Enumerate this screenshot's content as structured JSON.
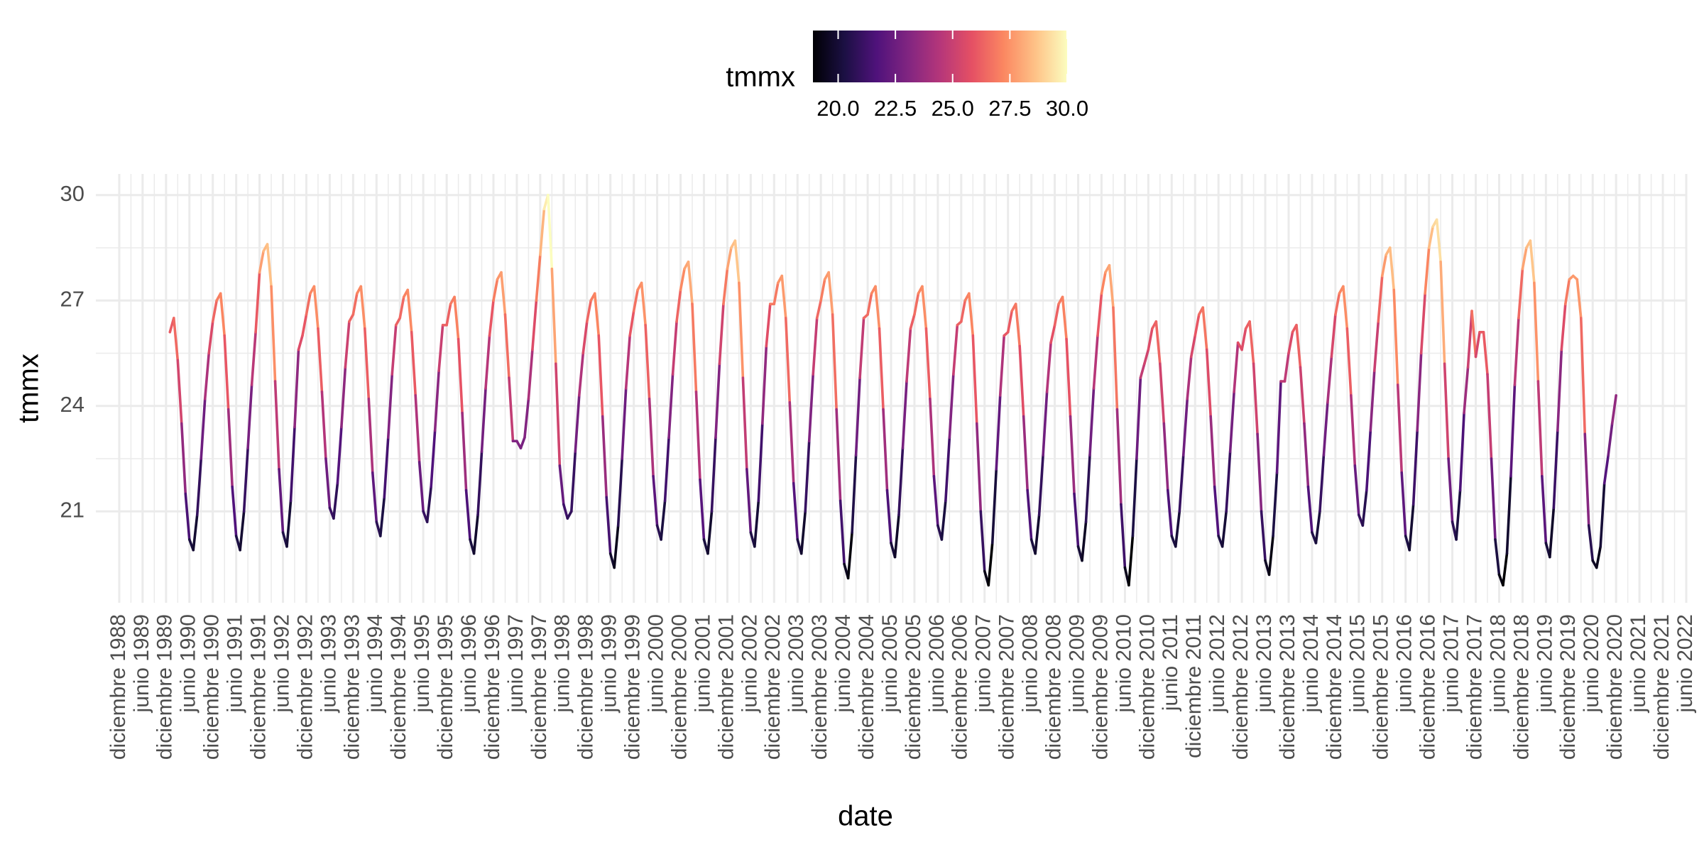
{
  "chart_data": {
    "type": "line",
    "x_label": "date",
    "y_label": "tmmx",
    "x": [
      "1990-01",
      "1990-02",
      "1990-03",
      "1990-04",
      "1990-05",
      "1990-06",
      "1990-07",
      "1990-08",
      "1990-09",
      "1990-10",
      "1990-11",
      "1990-12",
      "1991-01",
      "1991-02",
      "1991-03",
      "1991-04",
      "1991-05",
      "1991-06",
      "1991-07",
      "1991-08",
      "1991-09",
      "1991-10",
      "1991-11",
      "1991-12",
      "1992-01",
      "1992-02",
      "1992-03",
      "1992-04",
      "1992-05",
      "1992-06",
      "1992-07",
      "1992-08",
      "1992-09",
      "1992-10",
      "1992-11",
      "1992-12",
      "1993-01",
      "1993-02",
      "1993-03",
      "1993-04",
      "1993-05",
      "1993-06",
      "1993-07",
      "1993-08",
      "1993-09",
      "1993-10",
      "1993-11",
      "1993-12",
      "1994-01",
      "1994-02",
      "1994-03",
      "1994-04",
      "1994-05",
      "1994-06",
      "1994-07",
      "1994-08",
      "1994-09",
      "1994-10",
      "1994-11",
      "1994-12",
      "1995-01",
      "1995-02",
      "1995-03",
      "1995-04",
      "1995-05",
      "1995-06",
      "1995-07",
      "1995-08",
      "1995-09",
      "1995-10",
      "1995-11",
      "1995-12",
      "1996-01",
      "1996-02",
      "1996-03",
      "1996-04",
      "1996-05",
      "1996-06",
      "1996-07",
      "1996-08",
      "1996-09",
      "1996-10",
      "1996-11",
      "1996-12",
      "1997-01",
      "1997-02",
      "1997-03",
      "1997-04",
      "1997-05",
      "1997-06",
      "1997-07",
      "1997-08",
      "1997-09",
      "1997-10",
      "1997-11",
      "1997-12",
      "1998-01",
      "1998-02",
      "1998-03",
      "1998-04",
      "1998-05",
      "1998-06",
      "1998-07",
      "1998-08",
      "1998-09",
      "1998-10",
      "1998-11",
      "1998-12",
      "1999-01",
      "1999-02",
      "1999-03",
      "1999-04",
      "1999-05",
      "1999-06",
      "1999-07",
      "1999-08",
      "1999-09",
      "1999-10",
      "1999-11",
      "1999-12",
      "2000-01",
      "2000-02",
      "2000-03",
      "2000-04",
      "2000-05",
      "2000-06",
      "2000-07",
      "2000-08",
      "2000-09",
      "2000-10",
      "2000-11",
      "2000-12",
      "2001-01",
      "2001-02",
      "2001-03",
      "2001-04",
      "2001-05",
      "2001-06",
      "2001-07",
      "2001-08",
      "2001-09",
      "2001-10",
      "2001-11",
      "2001-12",
      "2002-01",
      "2002-02",
      "2002-03",
      "2002-04",
      "2002-05",
      "2002-06",
      "2002-07",
      "2002-08",
      "2002-09",
      "2002-10",
      "2002-11",
      "2002-12",
      "2003-01",
      "2003-02",
      "2003-03",
      "2003-04",
      "2003-05",
      "2003-06",
      "2003-07",
      "2003-08",
      "2003-09",
      "2003-10",
      "2003-11",
      "2003-12",
      "2004-01",
      "2004-02",
      "2004-03",
      "2004-04",
      "2004-05",
      "2004-06",
      "2004-07",
      "2004-08",
      "2004-09",
      "2004-10",
      "2004-11",
      "2004-12",
      "2005-01",
      "2005-02",
      "2005-03",
      "2005-04",
      "2005-05",
      "2005-06",
      "2005-07",
      "2005-08",
      "2005-09",
      "2005-10",
      "2005-11",
      "2005-12",
      "2006-01",
      "2006-02",
      "2006-03",
      "2006-04",
      "2006-05",
      "2006-06",
      "2006-07",
      "2006-08",
      "2006-09",
      "2006-10",
      "2006-11",
      "2006-12",
      "2007-01",
      "2007-02",
      "2007-03",
      "2007-04",
      "2007-05",
      "2007-06",
      "2007-07",
      "2007-08",
      "2007-09",
      "2007-10",
      "2007-11",
      "2007-12",
      "2008-01",
      "2008-02",
      "2008-03",
      "2008-04",
      "2008-05",
      "2008-06",
      "2008-07",
      "2008-08",
      "2008-09",
      "2008-10",
      "2008-11",
      "2008-12",
      "2009-01",
      "2009-02",
      "2009-03",
      "2009-04",
      "2009-05",
      "2009-06",
      "2009-07",
      "2009-08",
      "2009-09",
      "2009-10",
      "2009-11",
      "2009-12",
      "2010-01",
      "2010-02",
      "2010-03",
      "2010-04",
      "2010-05",
      "2010-06",
      "2010-07",
      "2010-08",
      "2010-09",
      "2010-10",
      "2010-11",
      "2010-12",
      "2011-01",
      "2011-02",
      "2011-03",
      "2011-04",
      "2011-05",
      "2011-06",
      "2011-07",
      "2011-08",
      "2011-09",
      "2011-10",
      "2011-11",
      "2011-12",
      "2012-01",
      "2012-02",
      "2012-03",
      "2012-04",
      "2012-05",
      "2012-06",
      "2012-07",
      "2012-08",
      "2012-09",
      "2012-10",
      "2012-11",
      "2012-12",
      "2013-01",
      "2013-02",
      "2013-03",
      "2013-04",
      "2013-05",
      "2013-06",
      "2013-07",
      "2013-08",
      "2013-09",
      "2013-10",
      "2013-11",
      "2013-12",
      "2014-01",
      "2014-02",
      "2014-03",
      "2014-04",
      "2014-05",
      "2014-06",
      "2014-07",
      "2014-08",
      "2014-09",
      "2014-10",
      "2014-11",
      "2014-12",
      "2015-01",
      "2015-02",
      "2015-03",
      "2015-04",
      "2015-05",
      "2015-06",
      "2015-07",
      "2015-08",
      "2015-09",
      "2015-10",
      "2015-11",
      "2015-12",
      "2016-01",
      "2016-02",
      "2016-03",
      "2016-04",
      "2016-05",
      "2016-06",
      "2016-07",
      "2016-08",
      "2016-09",
      "2016-10",
      "2016-11",
      "2016-12",
      "2017-01",
      "2017-02",
      "2017-03",
      "2017-04",
      "2017-05",
      "2017-06",
      "2017-07",
      "2017-08",
      "2017-09",
      "2017-10",
      "2017-11",
      "2017-12",
      "2018-01",
      "2018-02",
      "2018-03",
      "2018-04",
      "2018-05",
      "2018-06",
      "2018-07",
      "2018-08",
      "2018-09",
      "2018-10",
      "2018-11",
      "2018-12",
      "2019-01",
      "2019-02",
      "2019-03",
      "2019-04",
      "2019-05",
      "2019-06",
      "2019-07",
      "2019-08",
      "2019-09",
      "2019-10",
      "2019-11",
      "2019-12",
      "2020-01",
      "2020-02",
      "2020-03",
      "2020-04",
      "2020-05",
      "2020-06",
      "2020-07",
      "2020-08",
      "2020-09",
      "2020-10",
      "2020-11",
      "2020-12"
    ],
    "values": [
      26.1,
      26.5,
      25.3,
      23.5,
      21.5,
      20.2,
      19.9,
      20.9,
      22.5,
      24.2,
      25.5,
      26.4,
      27.0,
      27.2,
      26.0,
      23.9,
      21.7,
      20.3,
      19.9,
      21.0,
      22.8,
      24.6,
      26.1,
      27.8,
      28.4,
      28.6,
      27.4,
      24.7,
      22.2,
      20.4,
      20.0,
      21.3,
      23.4,
      25.6,
      26.0,
      26.6,
      27.2,
      27.4,
      26.2,
      24.4,
      22.5,
      21.1,
      20.8,
      21.8,
      23.4,
      25.1,
      26.4,
      26.6,
      27.2,
      27.4,
      26.2,
      24.2,
      22.1,
      20.7,
      20.3,
      21.4,
      23.1,
      24.9,
      26.3,
      26.5,
      27.1,
      27.3,
      26.1,
      24.3,
      22.4,
      21.0,
      20.7,
      21.7,
      23.3,
      25.0,
      26.3,
      26.3,
      26.9,
      27.1,
      25.9,
      23.8,
      21.6,
      20.2,
      19.8,
      20.9,
      22.7,
      24.5,
      26.0,
      27.0,
      27.6,
      27.8,
      26.6,
      24.8,
      23.0,
      23.0,
      22.8,
      23.1,
      24.2,
      25.6,
      27.0,
      28.3,
      29.6,
      30.0,
      27.9,
      25.2,
      22.3,
      21.2,
      20.8,
      21.0,
      22.7,
      24.3,
      25.5,
      26.4,
      27.0,
      27.2,
      26.0,
      23.7,
      21.4,
      19.8,
      19.4,
      20.6,
      22.5,
      24.5,
      26.0,
      26.7,
      27.3,
      27.5,
      26.3,
      24.2,
      22.0,
      20.6,
      20.2,
      21.3,
      23.1,
      24.9,
      26.4,
      27.3,
      27.9,
      28.1,
      26.9,
      24.4,
      21.9,
      20.2,
      19.8,
      21.0,
      23.1,
      25.2,
      26.9,
      27.9,
      28.5,
      28.7,
      27.5,
      24.8,
      22.2,
      20.4,
      20.0,
      21.3,
      23.5,
      25.7,
      26.9,
      26.9,
      27.5,
      27.7,
      26.5,
      24.1,
      21.8,
      20.2,
      19.8,
      21.0,
      23.0,
      24.9,
      26.5,
      27.0,
      27.6,
      27.8,
      26.6,
      23.9,
      21.3,
      19.5,
      19.1,
      20.4,
      22.6,
      24.8,
      26.5,
      26.6,
      27.2,
      27.4,
      26.2,
      23.9,
      21.6,
      20.1,
      19.7,
      20.9,
      22.8,
      24.7,
      26.2,
      26.6,
      27.2,
      27.4,
      26.2,
      24.2,
      22.0,
      20.6,
      20.2,
      21.3,
      23.1,
      24.9,
      26.3,
      26.4,
      27.0,
      27.2,
      26.0,
      23.5,
      21.0,
      19.3,
      18.9,
      20.1,
      22.2,
      24.3,
      26.0,
      26.1,
      26.7,
      26.9,
      25.7,
      23.7,
      21.6,
      20.2,
      19.8,
      20.9,
      22.6,
      24.4,
      25.8,
      26.3,
      26.9,
      27.1,
      25.9,
      23.7,
      21.5,
      20.0,
      19.6,
      20.7,
      22.6,
      24.5,
      26.0,
      27.2,
      27.8,
      28.0,
      26.8,
      23.9,
      21.2,
      19.4,
      18.9,
      20.3,
      22.5,
      24.8,
      25.2,
      25.6,
      26.2,
      26.4,
      25.2,
      23.5,
      21.6,
      20.3,
      20.0,
      21.0,
      22.6,
      24.2,
      25.4,
      26.0,
      26.6,
      26.8,
      25.6,
      23.7,
      21.7,
      20.3,
      20.0,
      21.0,
      22.7,
      24.4,
      25.8,
      25.6,
      26.2,
      26.4,
      25.2,
      23.2,
      21.0,
      19.6,
      19.2,
      20.3,
      22.1,
      24.7,
      24.7,
      25.5,
      26.1,
      26.3,
      25.1,
      23.5,
      21.7,
      20.4,
      20.1,
      21.0,
      22.6,
      24.1,
      25.4,
      26.6,
      27.2,
      27.4,
      26.2,
      24.3,
      22.3,
      20.9,
      20.6,
      21.6,
      23.3,
      25.0,
      26.4,
      27.7,
      28.3,
      28.5,
      27.3,
      24.6,
      22.1,
      20.3,
      19.9,
      21.2,
      23.3,
      25.5,
      27.2,
      28.5,
      29.1,
      29.3,
      28.1,
      25.2,
      22.5,
      20.7,
      20.2,
      21.6,
      23.8,
      25.1,
      26.7,
      25.4,
      26.1,
      26.1,
      24.9,
      22.5,
      20.2,
      19.2,
      18.9,
      19.8,
      22.0,
      24.6,
      26.5,
      27.9,
      28.5,
      28.7,
      27.5,
      24.7,
      22.0,
      20.1,
      19.7,
      21.1,
      23.3,
      25.6,
      26.9,
      27.6,
      27.7,
      27.6,
      26.5,
      23.2,
      20.6,
      19.6,
      19.4,
      20.0,
      21.8,
      22.6,
      23.5,
      24.3
    ],
    "xlim": [
      "1988-06",
      "2022-06"
    ],
    "xticks": [
      {
        "value": "1988-12",
        "label": "diciembre 1988"
      },
      {
        "value": "1989-06",
        "label": "junio 1989"
      },
      {
        "value": "1989-12",
        "label": "diciembre 1989"
      },
      {
        "value": "1990-06",
        "label": "junio 1990"
      },
      {
        "value": "1990-12",
        "label": "diciembre 1990"
      },
      {
        "value": "1991-06",
        "label": "junio 1991"
      },
      {
        "value": "1991-12",
        "label": "diciembre 1991"
      },
      {
        "value": "1992-06",
        "label": "junio 1992"
      },
      {
        "value": "1992-12",
        "label": "diciembre 1992"
      },
      {
        "value": "1993-06",
        "label": "junio 1993"
      },
      {
        "value": "1993-12",
        "label": "diciembre 1993"
      },
      {
        "value": "1994-06",
        "label": "junio 1994"
      },
      {
        "value": "1994-12",
        "label": "diciembre 1994"
      },
      {
        "value": "1995-06",
        "label": "junio 1995"
      },
      {
        "value": "1995-12",
        "label": "diciembre 1995"
      },
      {
        "value": "1996-06",
        "label": "junio 1996"
      },
      {
        "value": "1996-12",
        "label": "diciembre 1996"
      },
      {
        "value": "1997-06",
        "label": "junio 1997"
      },
      {
        "value": "1997-12",
        "label": "diciembre 1997"
      },
      {
        "value": "1998-06",
        "label": "junio 1998"
      },
      {
        "value": "1998-12",
        "label": "diciembre 1998"
      },
      {
        "value": "1999-06",
        "label": "junio 1999"
      },
      {
        "value": "1999-12",
        "label": "diciembre 1999"
      },
      {
        "value": "2000-06",
        "label": "junio 2000"
      },
      {
        "value": "2000-12",
        "label": "diciembre 2000"
      },
      {
        "value": "2001-06",
        "label": "junio 2001"
      },
      {
        "value": "2001-12",
        "label": "diciembre 2001"
      },
      {
        "value": "2002-06",
        "label": "junio 2002"
      },
      {
        "value": "2002-12",
        "label": "diciembre 2002"
      },
      {
        "value": "2003-06",
        "label": "junio 2003"
      },
      {
        "value": "2003-12",
        "label": "diciembre 2003"
      },
      {
        "value": "2004-06",
        "label": "junio 2004"
      },
      {
        "value": "2004-12",
        "label": "diciembre 2004"
      },
      {
        "value": "2005-06",
        "label": "junio 2005"
      },
      {
        "value": "2005-12",
        "label": "diciembre 2005"
      },
      {
        "value": "2006-06",
        "label": "junio 2006"
      },
      {
        "value": "2006-12",
        "label": "diciembre 2006"
      },
      {
        "value": "2007-06",
        "label": "junio 2007"
      },
      {
        "value": "2007-12",
        "label": "diciembre 2007"
      },
      {
        "value": "2008-06",
        "label": "junio 2008"
      },
      {
        "value": "2008-12",
        "label": "diciembre 2008"
      },
      {
        "value": "2009-06",
        "label": "junio 2009"
      },
      {
        "value": "2009-12",
        "label": "diciembre 2009"
      },
      {
        "value": "2010-06",
        "label": "junio 2010"
      },
      {
        "value": "2010-12",
        "label": "diciembre 2010"
      },
      {
        "value": "2011-06",
        "label": "junio 2011"
      },
      {
        "value": "2011-12",
        "label": "diciembre 2011"
      },
      {
        "value": "2012-06",
        "label": "junio 2012"
      },
      {
        "value": "2012-12",
        "label": "diciembre 2012"
      },
      {
        "value": "2013-06",
        "label": "junio 2013"
      },
      {
        "value": "2013-12",
        "label": "diciembre 2013"
      },
      {
        "value": "2014-06",
        "label": "junio 2014"
      },
      {
        "value": "2014-12",
        "label": "diciembre 2014"
      },
      {
        "value": "2015-06",
        "label": "junio 2015"
      },
      {
        "value": "2015-12",
        "label": "diciembre 2015"
      },
      {
        "value": "2016-06",
        "label": "junio 2016"
      },
      {
        "value": "2016-12",
        "label": "diciembre 2016"
      },
      {
        "value": "2017-06",
        "label": "junio 2017"
      },
      {
        "value": "2017-12",
        "label": "diciembre 2017"
      },
      {
        "value": "2018-06",
        "label": "junio 2018"
      },
      {
        "value": "2018-12",
        "label": "diciembre 2018"
      },
      {
        "value": "2019-06",
        "label": "junio 2019"
      },
      {
        "value": "2019-12",
        "label": "diciembre 2019"
      },
      {
        "value": "2020-06",
        "label": "junio 2020"
      },
      {
        "value": "2020-12",
        "label": "diciembre 2020"
      },
      {
        "value": "2021-06",
        "label": "junio 2021"
      },
      {
        "value": "2021-12",
        "label": "diciembre 2021"
      },
      {
        "value": "2022-06",
        "label": "junio 2022"
      }
    ],
    "ylim": [
      18.4,
      30.6
    ],
    "yticks": [
      21,
      24,
      27,
      30
    ],
    "grid": true,
    "legend": "top",
    "color_scale": {
      "title": "tmmx",
      "limits": [
        18.9,
        30.0
      ],
      "ticks": [
        {
          "value": 20,
          "label": "20.0"
        },
        {
          "value": 22.5,
          "label": "22.5"
        },
        {
          "value": 25,
          "label": "25.0"
        },
        {
          "value": 27.5,
          "label": "27.5"
        },
        {
          "value": 30,
          "label": "30.0"
        }
      ],
      "palette": [
        "#000004",
        "#1c1044",
        "#4f127b",
        "#812581",
        "#b5367a",
        "#e55064",
        "#fb8761",
        "#fec287",
        "#fcfdbf"
      ]
    }
  }
}
